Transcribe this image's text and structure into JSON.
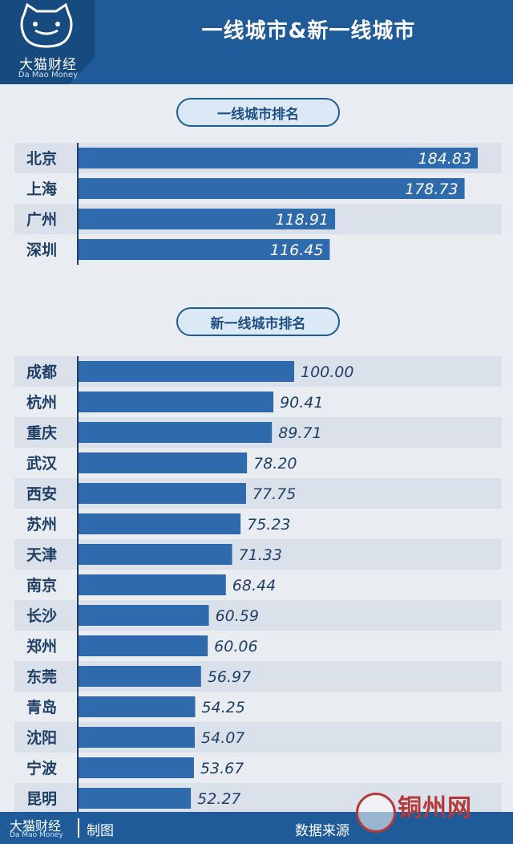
{
  "header": {
    "title": "一线城市&新一线城市",
    "logo_name": "大猫财经",
    "logo_en": "Da Mao Money"
  },
  "footer": {
    "brand": "大猫财经",
    "brand_en": "Da Mao Money",
    "made": "制图",
    "source": "数据来源"
  },
  "watermark": {
    "text": "铜州网"
  },
  "colors": {
    "bar": "#2f6aad",
    "band": "#dbe1ea",
    "header": "#1f5b98"
  },
  "chart_data": [
    {
      "type": "bar",
      "orientation": "horizontal",
      "title": "一线城市排名",
      "categories": [
        "北京",
        "上海",
        "广州",
        "深圳"
      ],
      "values": [
        184.83,
        178.73,
        118.91,
        116.45
      ],
      "value_labels": [
        "184.83",
        "178.73",
        "118.91",
        "116.45"
      ],
      "label_position": "inside-end"
    },
    {
      "type": "bar",
      "orientation": "horizontal",
      "title": "新一线城市排名",
      "categories": [
        "成都",
        "杭州",
        "重庆",
        "武汉",
        "西安",
        "苏州",
        "天津",
        "南京",
        "长沙",
        "郑州",
        "东莞",
        "青岛",
        "沈阳",
        "宁波",
        "昆明"
      ],
      "values": [
        100.0,
        90.41,
        89.71,
        78.2,
        77.75,
        75.23,
        71.33,
        68.44,
        60.59,
        60.06,
        56.97,
        54.25,
        54.07,
        53.67,
        52.27
      ],
      "value_labels": [
        "100.00",
        "90.41",
        "89.71",
        "78.20",
        "77.75",
        "75.23",
        "71.33",
        "68.44",
        "60.59",
        "60.06",
        "56.97",
        "54.25",
        "54.07",
        "53.67",
        "52.27"
      ],
      "label_position": "outside-end"
    }
  ]
}
